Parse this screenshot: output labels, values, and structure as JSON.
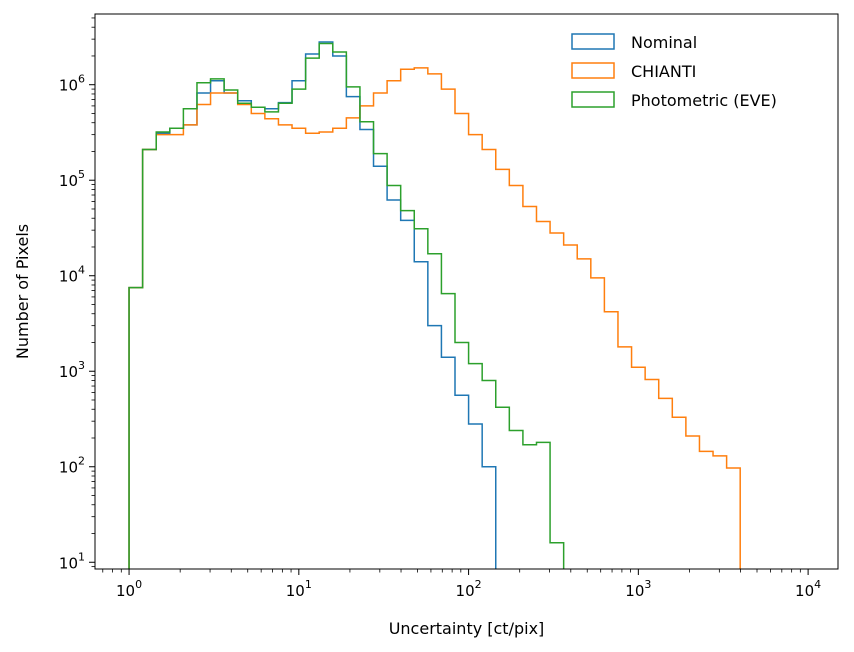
{
  "chart_data": {
    "type": "histogram-step",
    "title": "",
    "xlabel": "Uncertainty [ct/pix]",
    "ylabel": "Number of Pixels",
    "xscale": "log",
    "yscale": "log",
    "xlim": [
      0.63,
      15000
    ],
    "ylim": [
      8.5,
      5500000
    ],
    "x_ticks": [
      {
        "value": 1,
        "base": "10",
        "exp": "0"
      },
      {
        "value": 10,
        "base": "10",
        "exp": "1"
      },
      {
        "value": 100,
        "base": "10",
        "exp": "2"
      },
      {
        "value": 1000,
        "base": "10",
        "exp": "3"
      },
      {
        "value": 10000,
        "base": "10",
        "exp": "4"
      }
    ],
    "y_ticks": [
      {
        "value": 10,
        "base": "10",
        "exp": "1"
      },
      {
        "value": 100,
        "base": "10",
        "exp": "2"
      },
      {
        "value": 1000,
        "base": "10",
        "exp": "3"
      },
      {
        "value": 10000,
        "base": "10",
        "exp": "4"
      },
      {
        "value": 100000,
        "base": "10",
        "exp": "5"
      },
      {
        "value": 1000000,
        "base": "10",
        "exp": "6"
      }
    ],
    "legend_position": "top-right",
    "bins": {
      "start": 1.0,
      "end": 10000.0,
      "count": 50
    },
    "series": [
      {
        "name": "Nominal",
        "color": "#1f77b4",
        "values": [
          7500,
          210000,
          310000,
          350000,
          380000,
          820000,
          1100000,
          820000,
          680000,
          580000,
          560000,
          650000,
          1100000,
          2100000,
          2800000,
          2000000,
          750000,
          340000,
          140000,
          62000,
          38000,
          14000,
          3000,
          1400,
          560,
          280,
          100,
          0,
          0,
          0,
          0,
          0,
          0,
          0,
          0,
          0,
          0,
          0,
          0,
          0,
          0,
          0,
          0,
          0,
          0,
          0,
          0,
          0,
          0,
          0
        ]
      },
      {
        "name": "CHIANTI",
        "color": "#ff7f0e",
        "values": [
          7500,
          210000,
          300000,
          300000,
          380000,
          620000,
          820000,
          820000,
          620000,
          500000,
          440000,
          380000,
          350000,
          310000,
          320000,
          350000,
          450000,
          600000,
          820000,
          1100000,
          1450000,
          1500000,
          1300000,
          900000,
          500000,
          300000,
          210000,
          130000,
          88000,
          53000,
          37000,
          28000,
          21000,
          15000,
          9500,
          4200,
          1800,
          1100,
          820,
          520,
          330,
          210,
          145,
          130,
          97,
          0,
          0,
          0,
          0,
          0
        ]
      },
      {
        "name": "Photometric (EVE)",
        "color": "#2ca02c",
        "values": [
          7500,
          210000,
          320000,
          350000,
          560000,
          1050000,
          1150000,
          880000,
          640000,
          580000,
          520000,
          640000,
          900000,
          1900000,
          2700000,
          2200000,
          950000,
          410000,
          190000,
          88000,
          48000,
          31000,
          17000,
          6500,
          2000,
          1200,
          800,
          420,
          240,
          170,
          180,
          16,
          0,
          0,
          0,
          0,
          0,
          0,
          0,
          0,
          0,
          0,
          0,
          0,
          0,
          0,
          0,
          0,
          0,
          0
        ]
      }
    ]
  }
}
